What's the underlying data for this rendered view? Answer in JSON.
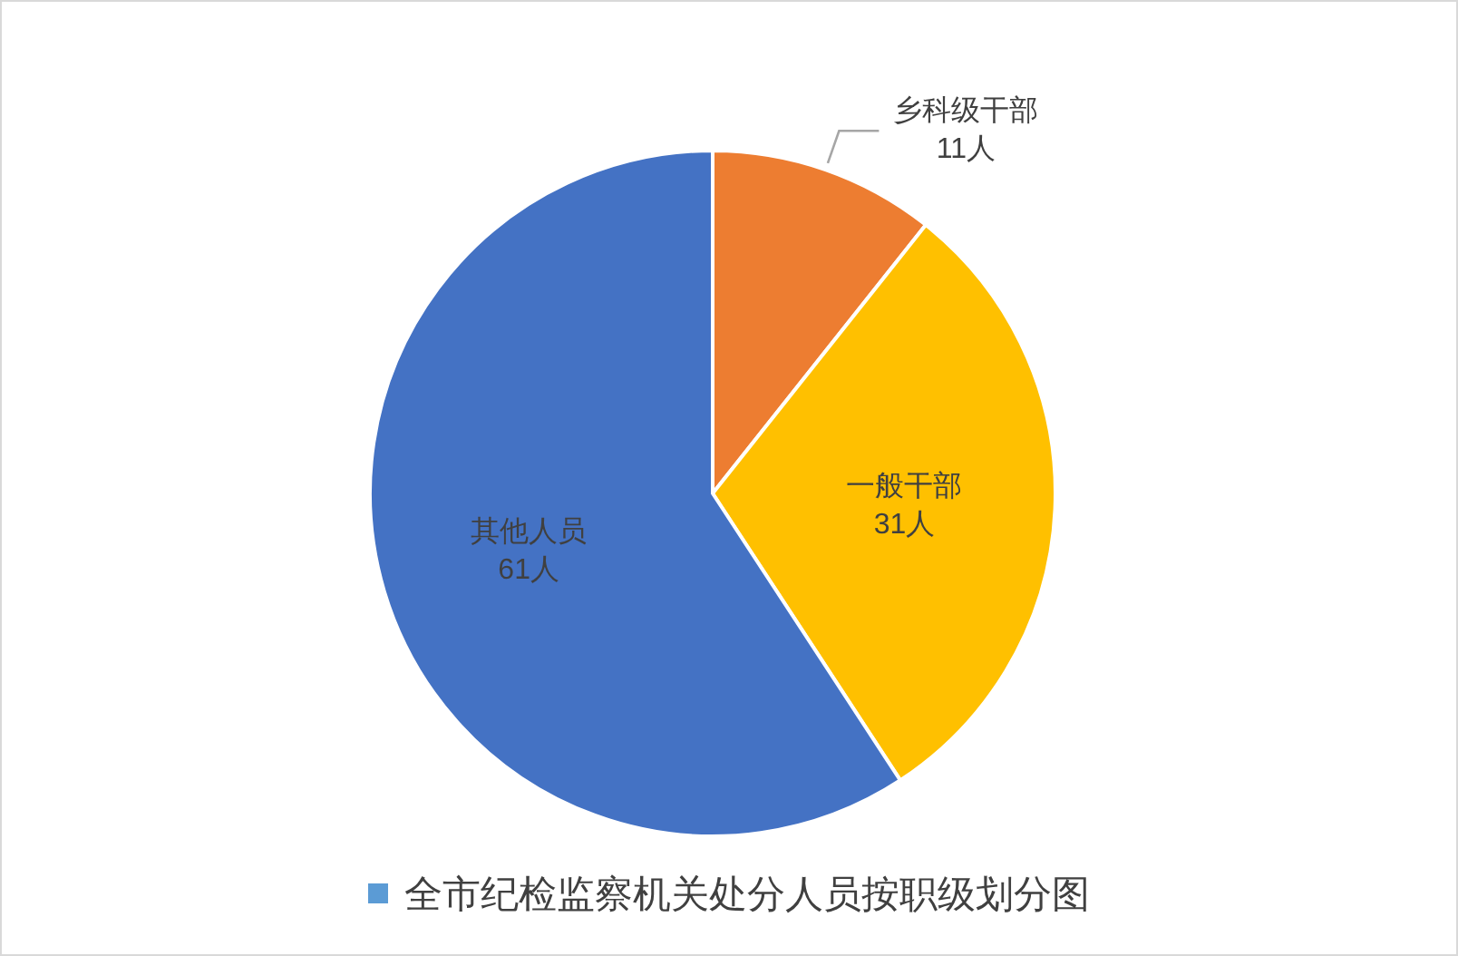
{
  "chart_data": {
    "type": "pie",
    "categories": [
      "乡科级干部",
      "一般干部",
      "其他人员"
    ],
    "colors": [
      "#ed7d31",
      "#ffc000",
      "#4472c4"
    ],
    "legend": "bottom",
    "series": [
      {
        "name": "全市纪检监察机关处分人员按职级划分图",
        "color": "#5b9bd5",
        "values": [
          11,
          31,
          61
        ],
        "value_labels": [
          "11人",
          "31人",
          "61人"
        ]
      }
    ]
  }
}
